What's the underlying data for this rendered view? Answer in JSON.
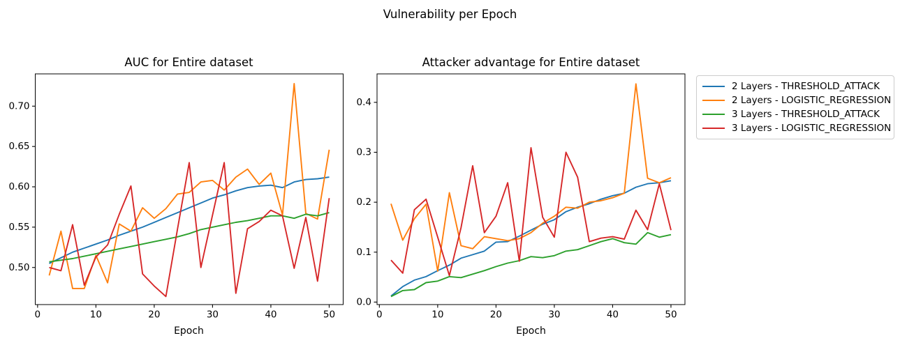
{
  "figure_title": "Vulnerability per Epoch",
  "chart_data": [
    {
      "type": "line",
      "title": "AUC for Entire dataset",
      "xlabel": "Epoch",
      "xlim": [
        -0.4,
        52.4
      ],
      "ylim": [
        0.454,
        0.74
      ],
      "xticks": [
        0,
        10,
        20,
        30,
        40,
        50
      ],
      "xtick_labels": [
        "0",
        "10",
        "20",
        "30",
        "40",
        "50"
      ],
      "yticks": [
        0.5,
        0.55,
        0.6,
        0.65,
        0.7
      ],
      "ytick_labels": [
        "0.50",
        "0.55",
        "0.60",
        "0.65",
        "0.70"
      ],
      "grid": false,
      "x": [
        2,
        4,
        6,
        8,
        10,
        12,
        14,
        16,
        18,
        20,
        22,
        24,
        26,
        28,
        30,
        32,
        34,
        36,
        38,
        40,
        42,
        44,
        46,
        48,
        50
      ],
      "series": [
        {
          "name": "2 Layers - THRESHOLD_ATTACK",
          "color": "#1f77b4",
          "values": [
            0.505,
            0.512,
            0.519,
            0.524,
            0.529,
            0.534,
            0.54,
            0.545,
            0.55,
            0.556,
            0.562,
            0.568,
            0.574,
            0.58,
            0.586,
            0.59,
            0.595,
            0.599,
            0.601,
            0.602,
            0.599,
            0.606,
            0.609,
            0.61,
            0.612
          ]
        },
        {
          "name": "2 Layers - LOGISTIC_REGRESSION",
          "color": "#ff7f0e",
          "values": [
            0.49,
            0.545,
            0.474,
            0.474,
            0.515,
            0.481,
            0.554,
            0.545,
            0.574,
            0.561,
            0.573,
            0.591,
            0.593,
            0.606,
            0.608,
            0.596,
            0.612,
            0.622,
            0.603,
            0.617,
            0.565,
            0.728,
            0.567,
            0.56,
            0.646
          ]
        },
        {
          "name": "3 Layers - THRESHOLD_ATTACK",
          "color": "#2ca02c",
          "values": [
            0.507,
            0.509,
            0.511,
            0.514,
            0.517,
            0.52,
            0.523,
            0.526,
            0.529,
            0.532,
            0.535,
            0.538,
            0.542,
            0.547,
            0.55,
            0.553,
            0.556,
            0.558,
            0.561,
            0.564,
            0.564,
            0.561,
            0.566,
            0.564,
            0.568
          ]
        },
        {
          "name": "3 Layers - LOGISTIC_REGRESSION",
          "color": "#d62728",
          "values": [
            0.5,
            0.496,
            0.553,
            0.478,
            0.513,
            0.528,
            0.566,
            0.601,
            0.492,
            0.477,
            0.464,
            0.548,
            0.63,
            0.5,
            0.565,
            0.63,
            0.468,
            0.548,
            0.557,
            0.571,
            0.564,
            0.499,
            0.562,
            0.483,
            0.586
          ]
        }
      ]
    },
    {
      "type": "line",
      "title": "Attacker advantage for Entire dataset",
      "xlabel": "Epoch",
      "xlim": [
        -0.4,
        52.4
      ],
      "ylim": [
        -0.005,
        0.457
      ],
      "xticks": [
        0,
        10,
        20,
        30,
        40,
        50
      ],
      "xtick_labels": [
        "0",
        "10",
        "20",
        "30",
        "40",
        "50"
      ],
      "yticks": [
        0.0,
        0.1,
        0.2,
        0.3,
        0.4
      ],
      "ytick_labels": [
        "0.0",
        "0.1",
        "0.2",
        "0.3",
        "0.4"
      ],
      "grid": false,
      "x": [
        2,
        4,
        6,
        8,
        10,
        12,
        14,
        16,
        18,
        20,
        22,
        24,
        26,
        28,
        30,
        32,
        34,
        36,
        38,
        40,
        42,
        44,
        46,
        48,
        50
      ],
      "series": [
        {
          "name": "2 Layers - THRESHOLD_ATTACK",
          "color": "#1f77b4",
          "values": [
            0.012,
            0.031,
            0.044,
            0.051,
            0.063,
            0.074,
            0.088,
            0.095,
            0.102,
            0.12,
            0.121,
            0.132,
            0.144,
            0.156,
            0.165,
            0.181,
            0.19,
            0.197,
            0.206,
            0.213,
            0.218,
            0.23,
            0.237,
            0.239,
            0.243
          ]
        },
        {
          "name": "2 Layers - LOGISTIC_REGRESSION",
          "color": "#ff7f0e",
          "values": [
            0.197,
            0.124,
            0.167,
            0.196,
            0.062,
            0.219,
            0.113,
            0.107,
            0.131,
            0.127,
            0.123,
            0.127,
            0.139,
            0.158,
            0.172,
            0.19,
            0.188,
            0.2,
            0.203,
            0.209,
            0.218,
            0.437,
            0.248,
            0.239,
            0.249
          ]
        },
        {
          "name": "3 Layers - THRESHOLD_ATTACK",
          "color": "#2ca02c",
          "values": [
            0.011,
            0.023,
            0.025,
            0.039,
            0.042,
            0.051,
            0.049,
            0.056,
            0.063,
            0.071,
            0.078,
            0.083,
            0.091,
            0.089,
            0.093,
            0.102,
            0.105,
            0.113,
            0.121,
            0.127,
            0.119,
            0.116,
            0.139,
            0.13,
            0.135
          ]
        },
        {
          "name": "3 Layers - LOGISTIC_REGRESSION",
          "color": "#d62728",
          "values": [
            0.084,
            0.058,
            0.185,
            0.206,
            0.13,
            0.053,
            0.149,
            0.273,
            0.139,
            0.172,
            0.239,
            0.082,
            0.309,
            0.17,
            0.13,
            0.3,
            0.25,
            0.121,
            0.128,
            0.131,
            0.126,
            0.184,
            0.145,
            0.237,
            0.144
          ]
        }
      ]
    }
  ],
  "legend": {
    "position": "outside-right",
    "entries": [
      {
        "label": "2 Layers - THRESHOLD_ATTACK",
        "color": "#1f77b4"
      },
      {
        "label": "2 Layers - LOGISTIC_REGRESSION",
        "color": "#ff7f0e"
      },
      {
        "label": "3 Layers - THRESHOLD_ATTACK",
        "color": "#2ca02c"
      },
      {
        "label": "3 Layers - LOGISTIC_REGRESSION",
        "color": "#d62728"
      }
    ]
  }
}
